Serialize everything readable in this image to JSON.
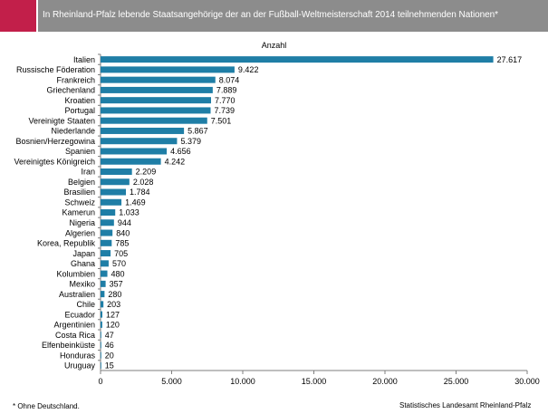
{
  "header": {
    "title": "In Rheinland-Pfalz lebende Staatsangehörige der an der Fußball-Weltmeisterschaft 2014 teilnehmenden Nationen*",
    "accent_color": "#c21f4a",
    "bar_color": "#8c8c8c"
  },
  "footer": {
    "note": "* Ohne Deutschland.",
    "source": "Statistisches Landesamt Rheinland-Pfalz"
  },
  "chart_data": {
    "type": "bar",
    "orientation": "horizontal",
    "title": "",
    "unit_label": "Anzahl",
    "categories": [
      "Italien",
      "Russische Föderation",
      "Frankreich",
      "Griechenland",
      "Kroatien",
      "Portugal",
      "Vereinigte Staaten",
      "Niederlande",
      "Bosnien/Herzegowina",
      "Spanien",
      "Vereinigtes Königreich",
      "Iran",
      "Belgien",
      "Brasilien",
      "Schweiz",
      "Kamerun",
      "Nigeria",
      "Algerien",
      "Korea, Republik",
      "Japan",
      "Ghana",
      "Kolumbien",
      "Mexiko",
      "Australien",
      "Chile",
      "Ecuador",
      "Argentinien",
      "Costa Rica",
      "Elfenbeinküste",
      "Honduras",
      "Uruguay"
    ],
    "values": [
      27617,
      9422,
      8074,
      7889,
      7770,
      7739,
      7501,
      5867,
      5379,
      4656,
      4242,
      2209,
      2028,
      1784,
      1469,
      1033,
      944,
      840,
      785,
      705,
      570,
      480,
      357,
      280,
      203,
      127,
      120,
      47,
      46,
      20,
      15
    ],
    "value_labels": [
      "27.617",
      "9.422",
      "8.074",
      "7.889",
      "7.770",
      "7.739",
      "7.501",
      "5.867",
      "5.379",
      "4.656",
      "4.242",
      "2.209",
      "2.028",
      "1.784",
      "1.469",
      "1.033",
      "944",
      "840",
      "785",
      "705",
      "570",
      "480",
      "357",
      "280",
      "203",
      "127",
      "120",
      "47",
      "46",
      "20",
      "15"
    ],
    "xlim": [
      0,
      30000
    ],
    "xticks": [
      0,
      5000,
      10000,
      15000,
      20000,
      25000,
      30000
    ],
    "xtick_labels": [
      "0",
      "5.000",
      "10.000",
      "15.000",
      "20.000",
      "25.000",
      "30.000"
    ],
    "bar_color": "#1f7ea6",
    "grid": false
  }
}
